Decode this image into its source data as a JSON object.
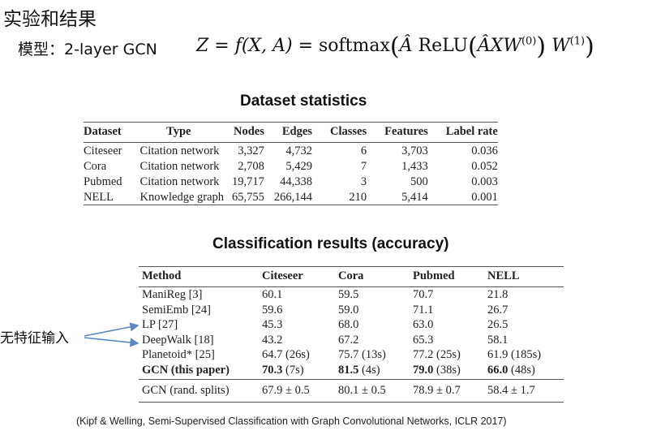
{
  "heading": "实验和结果",
  "model": {
    "label": "模型：2-layer GCN",
    "formula": {
      "lhs": "Z",
      "eq": " = ",
      "f": "f",
      "args": "(X, A)",
      "eq2": " = softmax",
      "ahat": "Â",
      "relu": " ReLU",
      "inner_a": "Â",
      "inner_xw": "XW",
      "w0": "(0)",
      "outer_w": "W",
      "w1": "(1)"
    }
  },
  "dataset_stats": {
    "title": "Dataset statistics",
    "headers": [
      "Dataset",
      "Type",
      "Nodes",
      "Edges",
      "Classes",
      "Features",
      "Label rate"
    ],
    "rows": [
      [
        "Citeseer",
        "Citation network",
        "3,327",
        "4,732",
        "6",
        "3,703",
        "0.036"
      ],
      [
        "Cora",
        "Citation network",
        "2,708",
        "5,429",
        "7",
        "1,433",
        "0.052"
      ],
      [
        "Pubmed",
        "Citation network",
        "19,717",
        "44,338",
        "3",
        "500",
        "0.003"
      ],
      [
        "NELL",
        "Knowledge graph",
        "65,755",
        "266,144",
        "210",
        "5,414",
        "0.001"
      ]
    ]
  },
  "classification": {
    "title": "Classification results (accuracy)",
    "headers": [
      "Method",
      "Citeseer",
      "Cora",
      "Pubmed",
      "NELL"
    ],
    "rows": [
      [
        "ManiReg [3]",
        "60.1",
        "59.5",
        "70.7",
        "21.8"
      ],
      [
        "SemiEmb [24]",
        "59.6",
        "59.0",
        "71.1",
        "26.7"
      ],
      [
        "LP [27]",
        "45.3",
        "68.0",
        "63.0",
        "26.5"
      ],
      [
        "DeepWalk [18]",
        "43.2",
        "67.2",
        "65.3",
        "58.1"
      ],
      [
        "Planetoid* [25]",
        "64.7 (26s)",
        "75.7 (13s)",
        "77.2 (25s)",
        "61.9 (185s)"
      ]
    ],
    "gcn": {
      "method": "GCN (this paper)",
      "citeseer": "70.3",
      "citeseer_t": " (7s)",
      "cora": "81.5",
      "cora_t": " (4s)",
      "pubmed": "79.0",
      "pubmed_t": " (38s)",
      "nell": "66.0",
      "nell_t": " (48s)"
    },
    "footer": [
      "GCN (rand. splits)",
      "67.9 ± 0.5",
      "80.1 ± 0.5",
      "78.9 ± 0.7",
      "58.4 ± 1.7"
    ]
  },
  "side_label": "无特征输入",
  "arrow_color": "#5b86c5",
  "citation": "(Kipf & Welling, Semi-Supervised Classification with Graph Convolutional Networks, ICLR 2017)"
}
